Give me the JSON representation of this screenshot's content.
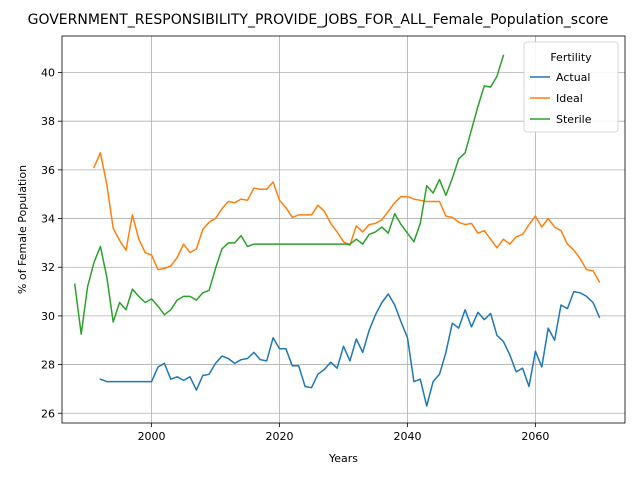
{
  "chart_data": {
    "type": "line",
    "title": "GOVERNMENT_RESPONSIBILITY_PROVIDE_JOBS_FOR_ALL_Female_Population_score",
    "xlabel": "Years",
    "ylabel": "% of Female Population",
    "xlim": [
      1986,
      2074
    ],
    "ylim": [
      25.6,
      41.5
    ],
    "xticks": [
      2000,
      2020,
      2040,
      2060
    ],
    "yticks": [
      26,
      28,
      30,
      32,
      34,
      36,
      38,
      40
    ],
    "grid": true,
    "legend": {
      "title": "Fertility",
      "placement": "top-right"
    },
    "series": [
      {
        "name": "Actual",
        "color": "#1f77b4",
        "x": [
          1992,
          1993,
          1994,
          1995,
          1996,
          1997,
          1998,
          1999,
          2000,
          2001,
          2002,
          2003,
          2004,
          2005,
          2006,
          2007,
          2008,
          2009,
          2010,
          2011,
          2012,
          2013,
          2014,
          2015,
          2016,
          2017,
          2018,
          2019,
          2020,
          2021,
          2022,
          2023,
          2024,
          2025,
          2026,
          2027,
          2028,
          2029,
          2030,
          2031,
          2032,
          2033,
          2034,
          2035,
          2036,
          2037,
          2038,
          2039,
          2040,
          2041,
          2042,
          2043,
          2044,
          2045,
          2046,
          2047,
          2048,
          2049,
          2050,
          2051,
          2052,
          2053,
          2054,
          2055,
          2056,
          2057,
          2058,
          2059,
          2060,
          2061,
          2062,
          2063,
          2064,
          2065,
          2066,
          2067,
          2068,
          2069,
          2070
        ],
        "values": [
          27.4,
          27.3,
          27.3,
          27.3,
          27.3,
          27.3,
          27.3,
          27.3,
          27.3,
          27.9,
          28.05,
          27.4,
          27.5,
          27.35,
          27.5,
          26.95,
          27.55,
          27.6,
          28.05,
          28.35,
          28.25,
          28.05,
          28.2,
          28.25,
          28.5,
          28.2,
          28.15,
          29.1,
          28.65,
          28.65,
          27.95,
          27.95,
          27.1,
          27.05,
          27.6,
          27.8,
          28.1,
          27.85,
          28.75,
          28.15,
          29.05,
          28.5,
          29.4,
          30.05,
          30.55,
          30.9,
          30.45,
          29.75,
          29.1,
          27.3,
          27.4,
          26.3,
          27.3,
          27.6,
          28.5,
          29.7,
          29.5,
          30.25,
          29.55,
          30.15,
          29.85,
          30.1,
          29.2,
          28.95,
          28.4,
          27.7,
          27.85,
          27.1,
          28.55,
          27.9,
          29.5,
          29.0,
          30.45,
          30.3,
          31.0,
          30.95,
          30.8,
          30.55,
          29.95
        ]
      },
      {
        "name": "Ideal",
        "color": "#ff7f0e",
        "x": [
          1991,
          1992,
          1993,
          1994,
          1995,
          1996,
          1997,
          1998,
          1999,
          2000,
          2001,
          2002,
          2003,
          2004,
          2005,
          2006,
          2007,
          2008,
          2009,
          2010,
          2011,
          2012,
          2013,
          2014,
          2015,
          2016,
          2017,
          2018,
          2019,
          2020,
          2021,
          2022,
          2023,
          2024,
          2025,
          2026,
          2027,
          2028,
          2029,
          2030,
          2031,
          2032,
          2033,
          2034,
          2035,
          2036,
          2037,
          2038,
          2039,
          2040,
          2041,
          2042,
          2043,
          2044,
          2045,
          2046,
          2047,
          2048,
          2049,
          2050,
          2051,
          2052,
          2053,
          2054,
          2055,
          2056,
          2057,
          2058,
          2059,
          2060,
          2061,
          2062,
          2063,
          2064,
          2065,
          2066,
          2067,
          2068,
          2069,
          2070
        ],
        "values": [
          36.1,
          36.7,
          35.4,
          33.6,
          33.1,
          32.7,
          34.15,
          33.15,
          32.6,
          32.5,
          31.9,
          31.95,
          32.05,
          32.4,
          32.95,
          32.6,
          32.75,
          33.55,
          33.85,
          34.0,
          34.4,
          34.7,
          34.65,
          34.8,
          34.75,
          35.25,
          35.2,
          35.2,
          35.5,
          34.75,
          34.45,
          34.05,
          34.15,
          34.15,
          34.15,
          34.55,
          34.3,
          33.8,
          33.45,
          33.05,
          32.9,
          33.7,
          33.45,
          33.75,
          33.8,
          33.95,
          34.3,
          34.65,
          34.9,
          34.9,
          34.8,
          34.75,
          34.7,
          34.7,
          34.7,
          34.1,
          34.05,
          33.85,
          33.75,
          33.8,
          33.4,
          33.5,
          33.15,
          32.8,
          33.15,
          32.95,
          33.25,
          33.35,
          33.75,
          34.1,
          33.65,
          34.0,
          33.65,
          33.5,
          32.95,
          32.7,
          32.35,
          31.9,
          31.85,
          31.4
        ]
      },
      {
        "name": "Sterile",
        "color": "#2ca02c",
        "x": [
          1988,
          1989,
          1990,
          1991,
          1992,
          1993,
          1994,
          1995,
          1996,
          1997,
          1998,
          1999,
          2000,
          2001,
          2002,
          2003,
          2004,
          2005,
          2006,
          2007,
          2008,
          2009,
          2010,
          2011,
          2012,
          2013,
          2014,
          2015,
          2016,
          2017,
          2018,
          2019,
          2020,
          2021,
          2022,
          2023,
          2024,
          2025,
          2026,
          2027,
          2028,
          2029,
          2030,
          2031,
          2032,
          2033,
          2034,
          2035,
          2036,
          2037,
          2038,
          2039,
          2040,
          2041,
          2042,
          2043,
          2044,
          2045,
          2046,
          2047,
          2048,
          2049,
          2050,
          2051,
          2052,
          2053,
          2054,
          2055
        ],
        "values": [
          31.3,
          29.25,
          31.2,
          32.2,
          32.85,
          31.6,
          29.75,
          30.55,
          30.25,
          31.1,
          30.8,
          30.55,
          30.7,
          30.4,
          30.05,
          30.25,
          30.65,
          30.8,
          30.8,
          30.65,
          30.95,
          31.05,
          31.95,
          32.75,
          33.0,
          33.0,
          33.3,
          32.85,
          32.95,
          32.95,
          32.95,
          32.95,
          32.95,
          32.95,
          32.95,
          32.95,
          32.95,
          32.95,
          32.95,
          32.95,
          32.95,
          32.95,
          32.95,
          32.95,
          33.15,
          32.95,
          33.35,
          33.45,
          33.65,
          33.4,
          34.2,
          33.75,
          33.4,
          33.05,
          33.8,
          35.35,
          35.05,
          35.6,
          34.95,
          35.65,
          36.45,
          36.7,
          37.65,
          38.6,
          39.45,
          39.4,
          39.85,
          40.7
        ]
      }
    ]
  }
}
